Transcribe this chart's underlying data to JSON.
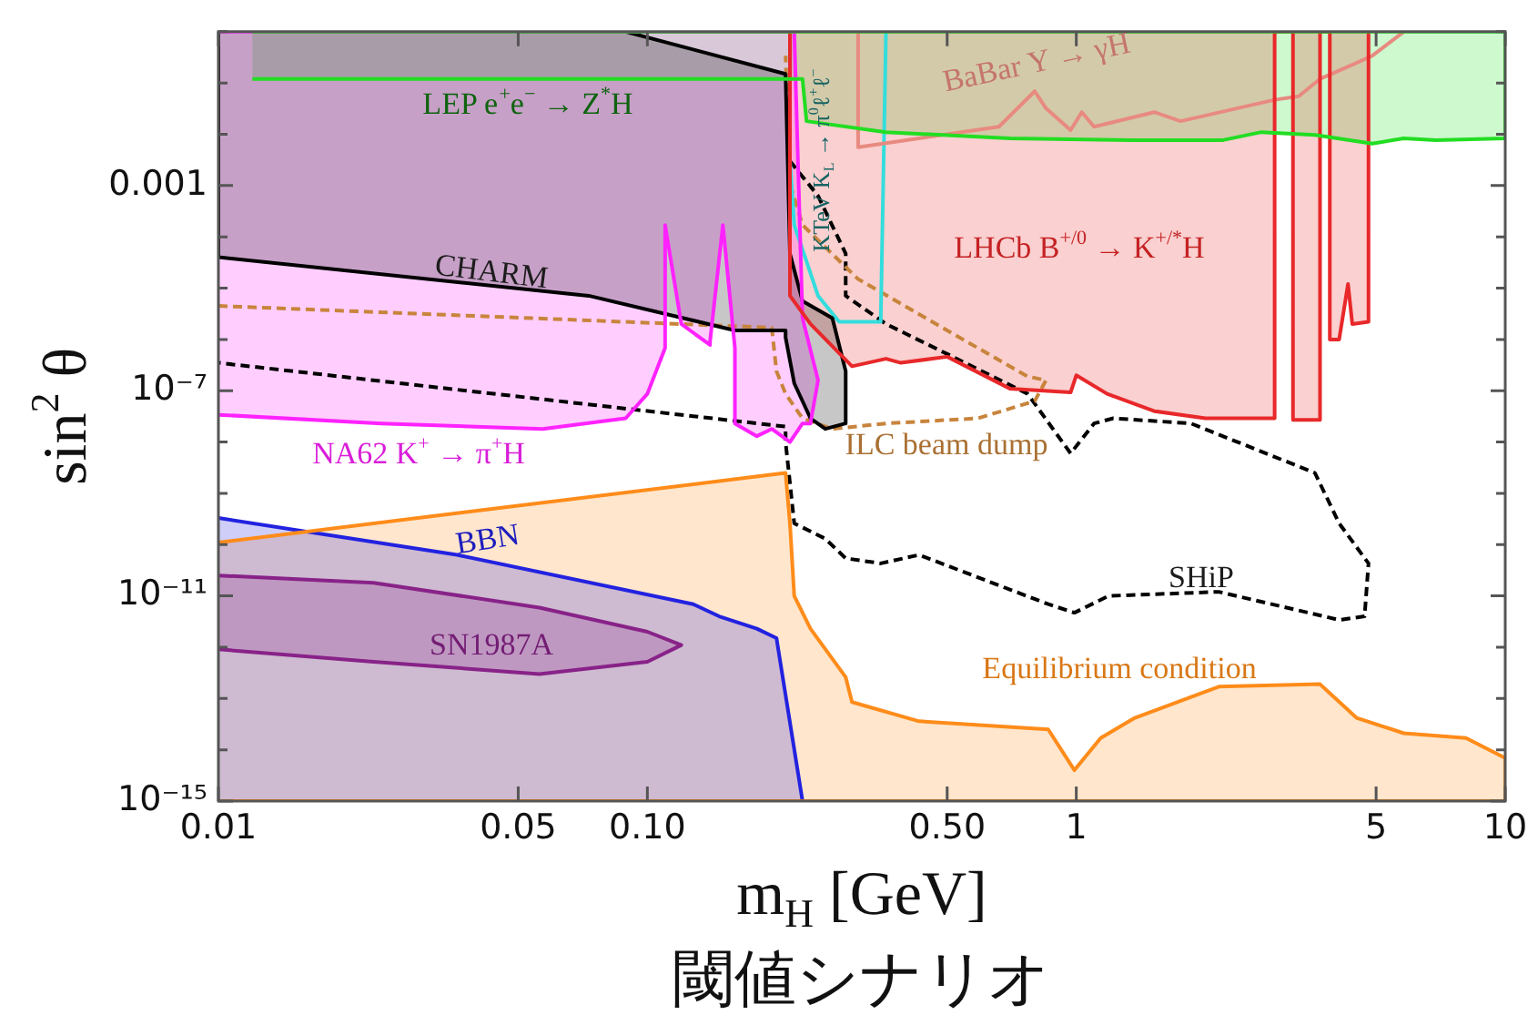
{
  "chart_data": {
    "type": "area",
    "log": "xy",
    "xlabel": "m$_{H}$ [GeV]",
    "ylabel": "sin$^{2}$ θ",
    "xlim": [
      0.01,
      10
    ],
    "ylim": [
      1e-15,
      1
    ],
    "xticks": [
      0.01,
      0.05,
      {
        "value": 0.1,
        "label": "0.10"
      },
      {
        "value": 0.5,
        "label": "0.50"
      },
      1,
      5,
      10
    ],
    "yticks": [
      {
        "value": 1e-15,
        "label": "10⁻¹⁵"
      },
      {
        "value": 1e-14,
        "label": null
      },
      {
        "value": 1e-13,
        "label": null
      },
      {
        "value": 1e-12,
        "label": null
      },
      {
        "value": 1e-11,
        "label": "10⁻¹¹"
      },
      {
        "value": 1e-10,
        "label": null
      },
      {
        "value": 1e-09,
        "label": null
      },
      {
        "value": 1e-08,
        "label": null
      },
      {
        "value": 1e-07,
        "label": "10⁻⁷"
      },
      {
        "value": 1e-06,
        "label": null
      },
      {
        "value": 1e-05,
        "label": null
      },
      {
        "value": 0.0001,
        "label": null
      },
      0.001,
      {
        "value": 0.01,
        "label": null
      },
      {
        "value": 0.1,
        "label": null
      },
      {
        "value": 1,
        "label": null
      }
    ],
    "series": [
      {
        "color": "#22dd22",
        "x": [
          0.012,
          0.23,
          0.235,
          0.36,
          0.7,
          1.34,
          2.2,
          2.7,
          3.6,
          4.9,
          5.8,
          6.9,
          10,
          10,
          0.012
        ],
        "values": [
          0.12,
          0.12,
          0.018,
          0.011,
          0.0083,
          0.0077,
          0.0077,
          0.011,
          0.0097,
          0.0066,
          0.0083,
          0.0077,
          0.0083,
          1,
          1
        ]
      },
      {
        "color": "#e8282a",
        "x": [
          0.215,
          0.215,
          0.24,
          0.3,
          0.36,
          0.39,
          0.5,
          0.7,
          0.97,
          1.0,
          1.18,
          1.52,
          2,
          2.9,
          2.9,
          3.2,
          3.2,
          3.7,
          3.7,
          3.9,
          3.9,
          4.1,
          4.3,
          4.4,
          4.8,
          4.8
        ],
        "values": [
          1,
          7.1e-06,
          2e-06,
          3e-07,
          4.2e-07,
          3.5e-07,
          4.6e-07,
          1.1e-07,
          9.3e-08,
          2e-07,
          8.7e-08,
          4e-08,
          2.9e-08,
          2.9e-08,
          1,
          1,
          2.7e-08,
          2.7e-08,
          1,
          1,
          1e-06,
          1e-06,
          1.2e-05,
          2e-06,
          2.2e-06,
          1
        ]
      },
      {
        "color": "#ff22ff",
        "x": [
          0.01,
          0.024,
          0.057,
          0.089,
          0.1,
          0.11,
          0.11,
          0.12,
          0.14,
          0.14,
          0.15,
          0.16,
          0.16,
          0.18,
          0.195,
          0.215,
          0.23,
          0.24,
          0.25,
          0.23,
          0.22,
          0.01
        ],
        "values": [
          3.4e-08,
          2.3e-08,
          1.8e-08,
          2.9e-08,
          8.7e-08,
          6.8e-07,
          0.00017,
          2e-06,
          7.8e-07,
          9.1e-07,
          0.00017,
          6.8e-07,
          2.3e-08,
          1.3e-08,
          1.8e-08,
          1e-08,
          2.3e-08,
          2.3e-08,
          1.6e-07,
          2.6e-06,
          1,
          1
        ]
      },
      {
        "color": "#ff8c1a",
        "x": [
          0.01,
          0.21,
          0.215,
          0.22,
          0.24,
          0.29,
          0.3,
          0.43,
          0.86,
          0.99,
          1.14,
          1.37,
          2.15,
          3.7,
          4.5,
          5.8,
          8.1,
          10,
          10,
          0.01
        ],
        "values": [
          1.1e-10,
          2.5e-09,
          2.6e-10,
          1e-11,
          2.3e-12,
          2.6e-13,
          8.5e-14,
          3.6e-14,
          2.5e-14,
          4e-15,
          1.7e-14,
          4.2e-14,
          1.7e-13,
          1.9e-13,
          4.2e-14,
          2.1e-14,
          1.7e-14,
          6.9e-15,
          1e-15,
          1e-15
        ]
      },
      {
        "color": "#2222e0",
        "x": [
          0.01,
          0.036,
          0.128,
          0.147,
          0.18,
          0.2,
          0.23,
          0.01
        ],
        "values": [
          3.3e-10,
          6.3e-11,
          6.9e-12,
          4e-12,
          2.3e-12,
          1.5e-12,
          1e-15,
          1e-15
        ]
      },
      {
        "color": "#882288",
        "x": [
          0.01,
          0.023,
          0.056,
          0.1,
          0.12,
          0.1,
          0.056,
          0.023,
          0.01
        ],
        "values": [
          2.5e-11,
          1.8e-11,
          5.9e-12,
          2e-12,
          1.1e-12,
          5.2e-13,
          3e-13,
          5.2e-13,
          9.1e-13
        ]
      },
      {
        "color": "#000000",
        "x": [
          0.089,
          0.21,
          0.215,
          0.23,
          0.27,
          0.29,
          0.29,
          0.26,
          0.24,
          0.22,
          0.21,
          0.21,
          0.16,
          0.073,
          0.01,
          0.01
        ],
        "values": [
          1,
          0.15,
          4.7e-05,
          5.6e-06,
          2.6e-06,
          2.4e-07,
          2.3e-08,
          1.8e-08,
          2.9e-08,
          1.4e-07,
          1.1e-06,
          1.5e-06,
          1.5e-06,
          7.1e-06,
          4e-05,
          1
        ]
      },
      {
        "type": "line",
        "color": "#e88a80",
        "x": [
          0.31,
          0.31,
          0.66,
          0.8,
          0.85,
          0.97,
          1.03,
          1.1,
          1.52,
          1.75,
          2.9,
          3.3,
          3.7,
          4.2,
          4.9,
          5.8
        ],
        "values": [
          1,
          0.0056,
          0.014,
          0.069,
          0.032,
          0.012,
          0.027,
          0.014,
          0.027,
          0.018,
          0.047,
          0.055,
          0.12,
          0.19,
          0.34,
          1
        ]
      },
      {
        "type": "line",
        "color": "#33dddd",
        "x": [
          0.215,
          0.215,
          0.22,
          0.25,
          0.28,
          0.35,
          0.36
        ],
        "values": [
          1,
          0.003,
          0.00017,
          7.1e-06,
          2.2e-06,
          2.2e-06,
          1
        ]
      },
      {
        "type": "line",
        "line_style": "dashed",
        "color": "#c8843c",
        "x": [
          0.01,
          0.195,
          0.2,
          0.21,
          0.23,
          0.27,
          0.36,
          0.59,
          0.8,
          0.85,
          0.77,
          0.5,
          0.31,
          0.23,
          0.215,
          0.21
        ],
        "values": [
          4.5e-06,
          1.7e-06,
          2.4e-07,
          8.7e-08,
          2.9e-08,
          1.8e-08,
          2.3e-08,
          2.9e-08,
          6.3e-08,
          1.6e-07,
          1.9e-07,
          1.5e-06,
          1.5e-05,
          0.00017,
          0.0011,
          0.34
        ]
      },
      {
        "type": "line",
        "line_style": "dashed",
        "color": "#000000",
        "x": [
          0.215,
          0.25,
          0.29,
          0.29,
          0.36,
          0.5,
          0.77,
          0.97,
          1.1,
          1.22,
          1.85,
          3.6,
          4.1,
          4.8,
          4.7,
          4.1,
          2.15,
          1.19,
          0.99,
          0.86,
          0.43,
          0.35,
          0.29,
          0.26,
          0.22,
          0.21,
          0.21,
          0.01
        ],
        "values": [
          0.003,
          0.00063,
          4.7e-05,
          7.1e-06,
          2e-06,
          5.2e-07,
          8.7e-08,
          6e-09,
          2.3e-08,
          2.9e-08,
          2.3e-08,
          2.5e-09,
          2.6e-10,
          4.3e-11,
          4e-12,
          3.4e-12,
          1.2e-11,
          1e-11,
          4.7e-12,
          6.9e-12,
          6.3e-11,
          4.3e-11,
          5.4e-11,
          1.3e-10,
          2.6e-10,
          1e-08,
          2e-08,
          3.5e-07
        ]
      }
    ],
    "annotations": [
      "LEP e$^{+}$e$^{−}$ → Z$^{*}$H",
      "LHCb B$^{+/0}$ → K$^{+/*}$H",
      "NA62 K$^{+}$ → π$^{+}$H",
      "Equilibrium condition",
      "BBN",
      "SN1987A",
      "CHARM",
      "BaBar Υ → γH",
      "KTeV K$_{L}$ → π$^{0}$ℓ$^{+}$ℓ$^{−}$",
      "ILC beam dump",
      "SHiP",
      "閾値シナリオ"
    ]
  }
}
